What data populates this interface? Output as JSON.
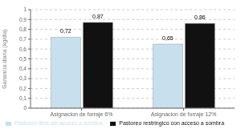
{
  "chart_data": {
    "type": "bar",
    "categories": [
      "Asignacion de forraje 6%",
      "Asignacion de forraje 12%"
    ],
    "series": [
      {
        "name": "Pastoreo libre sin acceso a sombra",
        "color": "#c8e0ee",
        "values": [
          0.72,
          0.65
        ],
        "value_labels": [
          "0,72",
          "0,65"
        ]
      },
      {
        "name": "Pastoreo restringico con acceso a sombra",
        "color": "#111111",
        "values": [
          0.87,
          0.86
        ],
        "value_labels": [
          "0,87",
          "0,86"
        ]
      }
    ],
    "ylabel": "Ganancia diaria (kg/dia)",
    "ylim": [
      0,
      1.0
    ],
    "yticks": [
      0,
      {
        "value": 0.1,
        "label": "0,1"
      },
      {
        "value": 0.2,
        "label": "0,2"
      },
      {
        "value": 0.3,
        "label": "0,3"
      },
      {
        "value": 0.4,
        "label": "0,4"
      },
      {
        "value": 0.5,
        "label": "0,5"
      },
      {
        "value": 0.6,
        "label": "0,6"
      },
      {
        "value": 0.7,
        "label": "0,7"
      },
      {
        "value": 0.8,
        "label": "0,8"
      },
      {
        "value": 0.9,
        "label": "0,9"
      },
      1
    ],
    "grid": true,
    "legend": "bottom",
    "data_labels": true
  }
}
